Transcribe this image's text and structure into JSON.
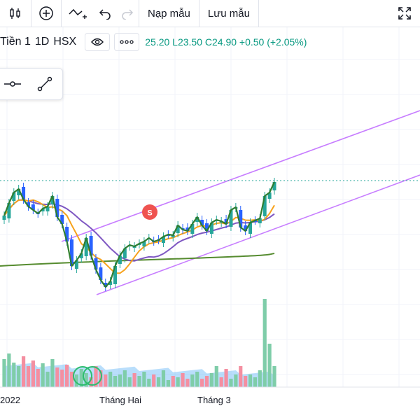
{
  "toolbar": {
    "items": [
      {
        "name": "candles-icon"
      },
      {
        "name": "add-indicator-icon"
      },
      {
        "name": "compare-icon"
      },
      {
        "name": "undo-icon"
      },
      {
        "name": "redo-icon"
      }
    ],
    "load_template_label": "Nạp mẫu",
    "save_template_label": "Lưu mẫu",
    "fullscreen_icon": "fullscreen-icon"
  },
  "legend": {
    "symbol": "Tiền 1",
    "interval": "1D",
    "exchange": "HSX",
    "visibility_icon": "eye-icon",
    "more_icon": "more-icon",
    "ohlc": "25.20  L23.50  C24.90  +0.50 (+2.05%)"
  },
  "tools": [
    {
      "name": "horizontal-ray-icon"
    },
    {
      "name": "trend-line-icon"
    }
  ],
  "chart_data": {
    "type": "candlestick",
    "x_labels": [
      "2022",
      "Tháng Hai",
      "Tháng 3"
    ],
    "marker_label": "S",
    "colors": {
      "up": "#26a69a",
      "down": "#2962ff",
      "line": "#2e7d32",
      "ma_fast": "#f7a21b",
      "ma_mid": "#7e57c2",
      "ma_slow": "#558b2f",
      "channel": "#c77dff",
      "last_price": "#26a69a",
      "vol_up": "#7fcda9",
      "vol_down": "#f48fa1",
      "vol_area": "#64b5f6",
      "marker": "#ef5350"
    }
  }
}
